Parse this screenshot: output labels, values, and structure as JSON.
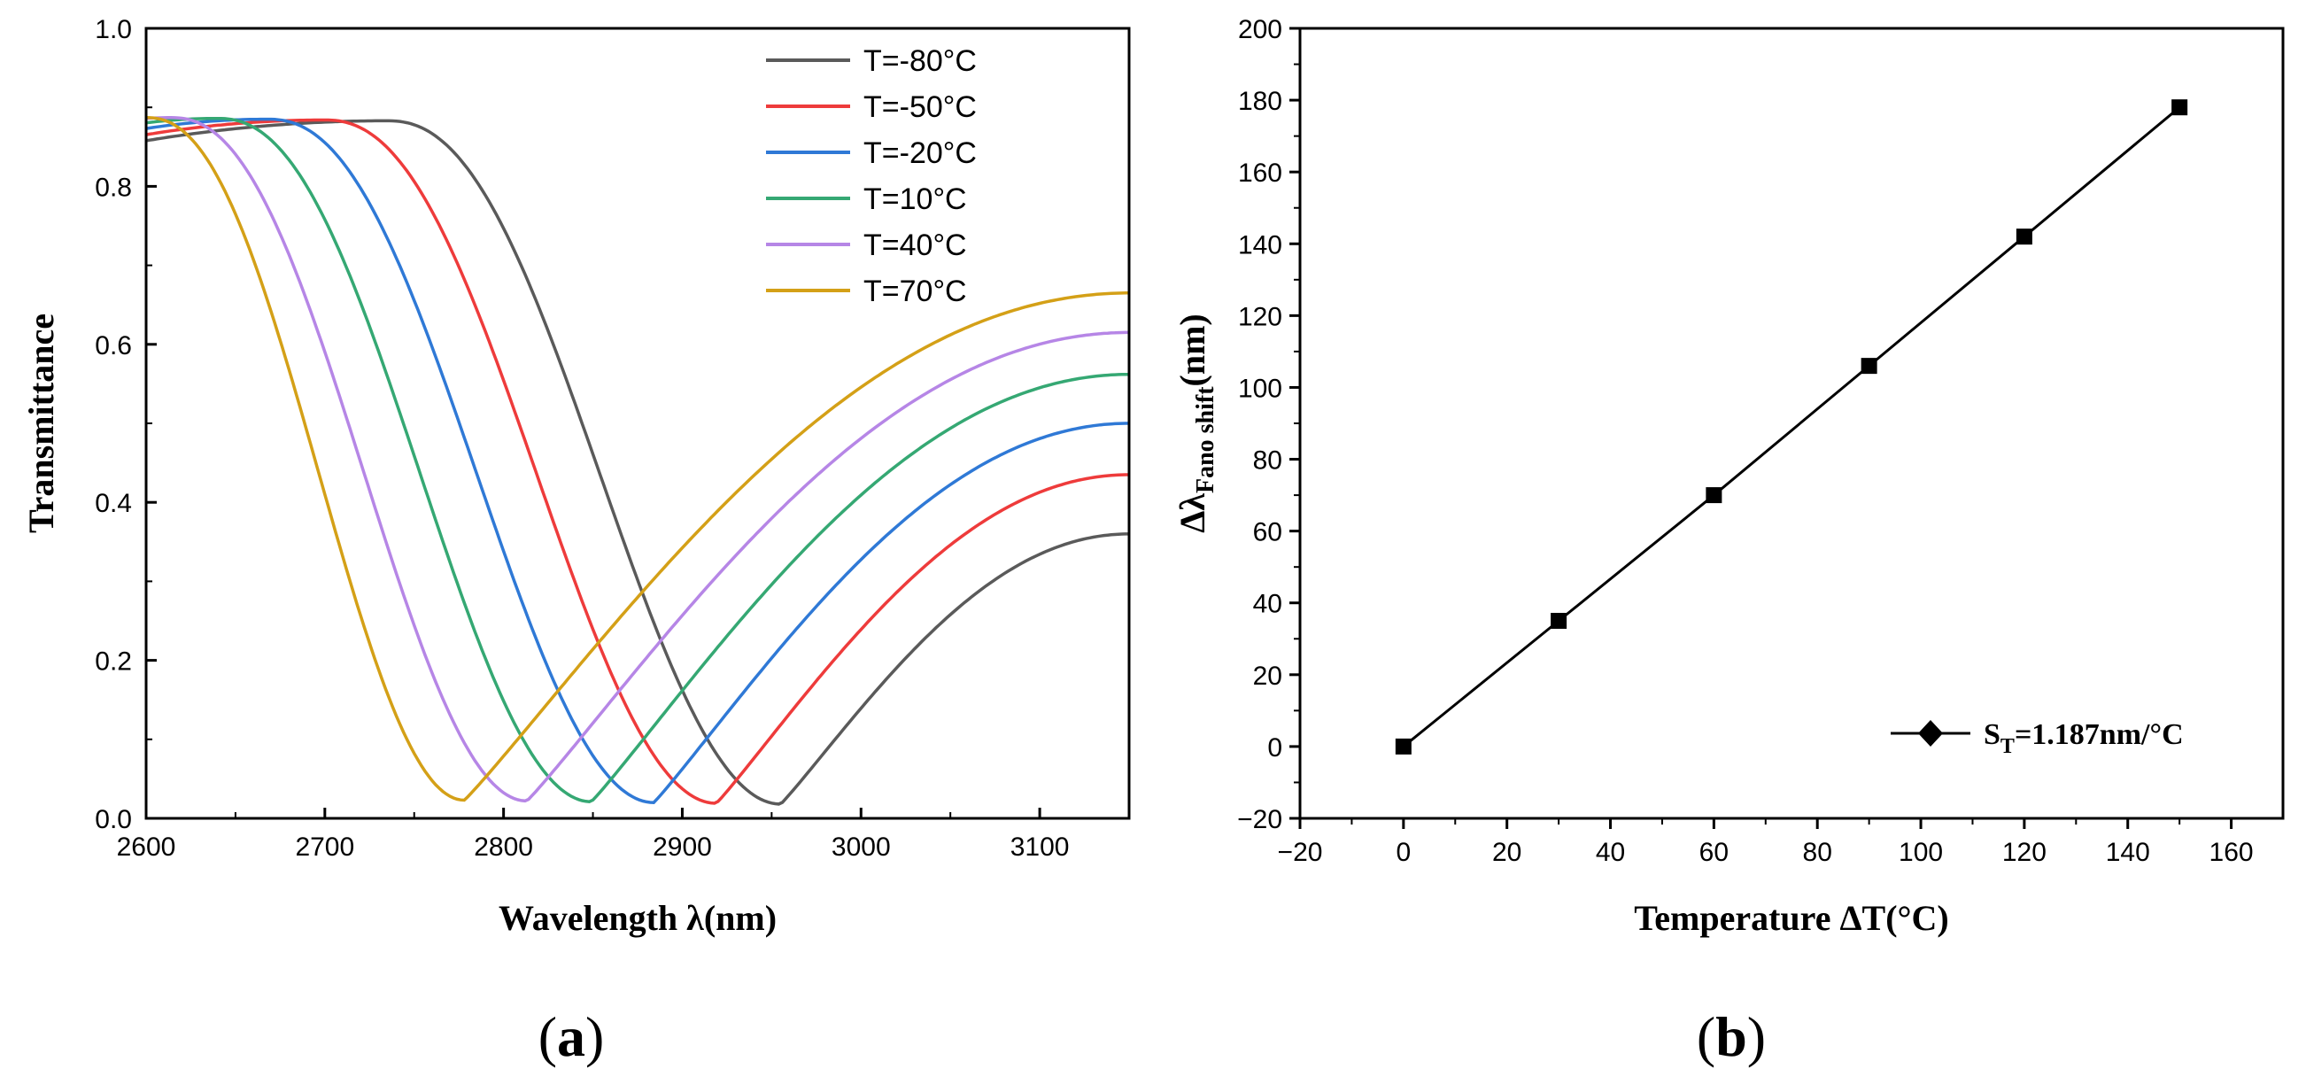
{
  "captions": {
    "a": "a",
    "b": "b"
  },
  "chart_data": [
    {
      "id": "a",
      "type": "line",
      "title": "",
      "xlabel": "Wavelength λ(nm)",
      "ylabel": "Transmittance",
      "xlim": [
        2600,
        3150
      ],
      "ylim": [
        0.0,
        1.0
      ],
      "xticks": [
        2600,
        2700,
        2800,
        2900,
        3000,
        3100
      ],
      "yticks": [
        0.0,
        0.2,
        0.4,
        0.6,
        0.8,
        1.0
      ],
      "xtick_labels": [
        "2600",
        "2700",
        "2800",
        "2900",
        "3000",
        "3100"
      ],
      "ytick_labels": [
        "0.0",
        "0.2",
        "0.4",
        "0.6",
        "0.8",
        "1.0"
      ],
      "grid": false,
      "legend_position": "top-right",
      "series": [
        {
          "name": "T=-80°C",
          "color": "#5a5a5a",
          "peak_x": 2735,
          "peak_y": 0.883,
          "dip_x": 2955,
          "dip_y": 0.018,
          "end_y": 0.36
        },
        {
          "name": "T=-50°C",
          "color": "#ee3b3b",
          "peak_x": 2700,
          "peak_y": 0.884,
          "dip_x": 2919,
          "dip_y": 0.019,
          "end_y": 0.435
        },
        {
          "name": "T=-20°C",
          "color": "#2f79d6",
          "peak_x": 2668,
          "peak_y": 0.885,
          "dip_x": 2884,
          "dip_y": 0.02,
          "end_y": 0.5
        },
        {
          "name": "T=10°C",
          "color": "#35a873",
          "peak_x": 2640,
          "peak_y": 0.886,
          "dip_x": 2849,
          "dip_y": 0.021,
          "end_y": 0.562
        },
        {
          "name": "T=40°C",
          "color": "#b686e6",
          "peak_x": 2614,
          "peak_y": 0.887,
          "dip_x": 2813,
          "dip_y": 0.022,
          "end_y": 0.615
        },
        {
          "name": "T=70°C",
          "color": "#d4a017",
          "peak_x": 2600,
          "peak_y": 0.887,
          "dip_x": 2778,
          "dip_y": 0.023,
          "end_y": 0.665
        }
      ]
    },
    {
      "id": "b",
      "type": "line",
      "title": "",
      "xlabel": "Temperature ΔT(°C)",
      "ylabel_main": "Δλ",
      "ylabel_sub": "Fano shift",
      "ylabel_tail": "(nm)",
      "xlim": [
        -20,
        170
      ],
      "ylim": [
        -20,
        200
      ],
      "xticks": [
        -20,
        0,
        20,
        40,
        60,
        80,
        100,
        120,
        140,
        160
      ],
      "yticks": [
        -20,
        0,
        20,
        40,
        60,
        80,
        100,
        120,
        140,
        160,
        180,
        200
      ],
      "xtick_labels": [
        "−20",
        "0",
        "20",
        "40",
        "60",
        "80",
        "100",
        "120",
        "140",
        "160"
      ],
      "ytick_labels": [
        "−20",
        "0",
        "20",
        "40",
        "60",
        "80",
        "100",
        "120",
        "140",
        "160",
        "180",
        "200"
      ],
      "grid": false,
      "legend_position": "bottom-right",
      "series": [
        {
          "name_main": "S",
          "name_sub": "T",
          "name_tail": "=1.187nm/°C",
          "color": "#000000",
          "x": [
            0,
            30,
            60,
            90,
            120,
            150
          ],
          "y": [
            0,
            35,
            70,
            106,
            142,
            178
          ]
        }
      ]
    }
  ]
}
